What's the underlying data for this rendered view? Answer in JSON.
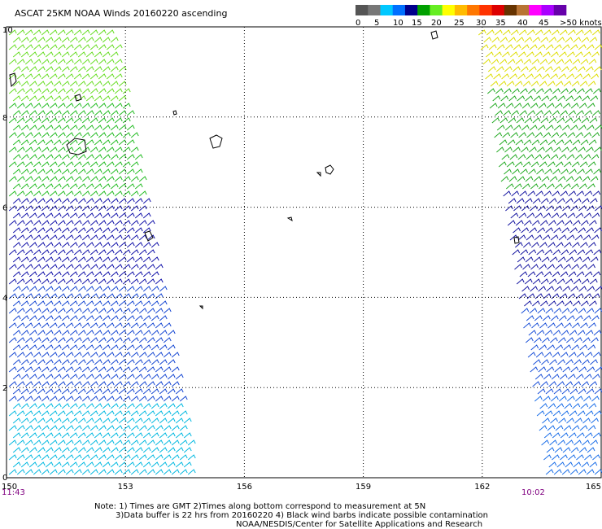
{
  "title": "ASCAT 25KM NOAA Winds 20160220 ascending",
  "legend": {
    "labels": [
      "0",
      "5",
      "10",
      "15",
      "20",
      "25",
      "30",
      "35",
      "40",
      "45",
      ">50 knots"
    ],
    "colors": [
      "#555555",
      "#777777",
      "#00c8ff",
      "#0070ff",
      "#00008c",
      "#00a000",
      "#66ee22",
      "#ffff00",
      "#ffbb00",
      "#ff7700",
      "#ff3300",
      "#dd0000",
      "#663300",
      "#b87333",
      "#ff00ff",
      "#aa00ff",
      "#6600aa"
    ]
  },
  "axes": {
    "x_ticks": [
      "150",
      "153",
      "156",
      "159",
      "162",
      "165"
    ],
    "y_ticks": [
      "0",
      "2",
      "4",
      "6",
      "8",
      "10"
    ],
    "x_range": [
      150,
      165
    ],
    "y_range": [
      0,
      10
    ]
  },
  "times": {
    "left": "11:43",
    "right": "10:02"
  },
  "notes": [
    "Note: 1) Times are GMT 2)Times along bottom correspond to measurement at 5N",
    "3)Data buffer is 22 hrs from 20160220 4) Black wind barbs indicate possible contamination",
    "NOAA/NESDIS/Center for Satellite Applications and Research"
  ],
  "swaths": [
    {
      "name": "west",
      "bands": [
        {
          "lat": [
            0,
            1.6
          ],
          "color": "#00b8e0"
        },
        {
          "lat": [
            1.6,
            4.2
          ],
          "color": "#1446d2"
        },
        {
          "lat": [
            4.2,
            6.2
          ],
          "color": "#1010a8"
        },
        {
          "lat": [
            6.2,
            8.4
          ],
          "color": "#22bb22"
        },
        {
          "lat": [
            8.4,
            10
          ],
          "color": "#66dd22"
        }
      ]
    },
    {
      "name": "east",
      "bands": [
        {
          "lat": [
            0,
            1.8
          ],
          "color": "#1a6ee8"
        },
        {
          "lat": [
            1.8,
            3.8
          ],
          "color": "#1a50d8"
        },
        {
          "lat": [
            3.8,
            6.4
          ],
          "color": "#1414a0"
        },
        {
          "lat": [
            6.4,
            8.6
          ],
          "color": "#22aa22"
        },
        {
          "lat": [
            8.6,
            10
          ],
          "color": "#dddd00"
        }
      ]
    }
  ]
}
